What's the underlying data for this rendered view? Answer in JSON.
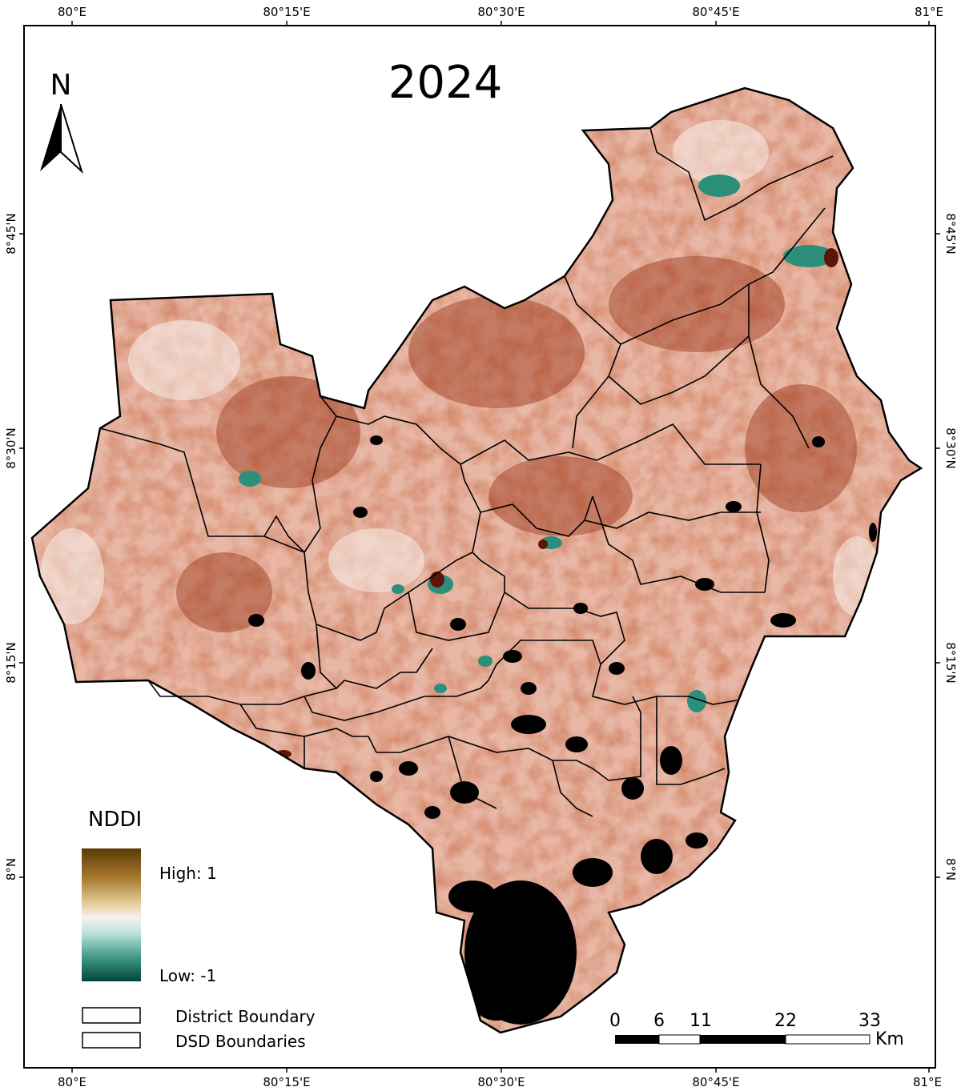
{
  "map": {
    "title": "2024",
    "north_label": "N",
    "top_axis_labels": [
      "80°E",
      "80°15'E",
      "80°30'E",
      "80°45'E",
      "81°E"
    ],
    "bottom_axis_labels": [
      "80°E",
      "80°15'E",
      "80°30'E",
      "80°45'E",
      "81°E"
    ],
    "left_axis_labels": [
      "8°45'N",
      "8°30'N",
      "8°15'N",
      "8°N"
    ],
    "right_axis_labels": [
      "8°45'N",
      "8°30'N",
      "8°15'N",
      "8°N"
    ],
    "legend": {
      "title": "NDDI",
      "high_label": "High: 1",
      "low_label": "Low: -1",
      "ramp_colors": [
        "#5b3a06",
        "#a8782e",
        "#e6cf9a",
        "#f6f3ef",
        "#b9e2dc",
        "#3f9888",
        "#00463a"
      ],
      "boundary_items": [
        {
          "label": "District Boundary"
        },
        {
          "label": "DSD Boundaries"
        }
      ]
    },
    "scale_bar": {
      "ticks": [
        "0",
        "6",
        "11",
        "22",
        "33"
      ],
      "unit": "Km"
    },
    "colors": {
      "land_base": "#e8b7a6",
      "land_high": "#a63b1c",
      "water_low": "#2b8f7c",
      "nodata": "#000000",
      "boundary": "#000000"
    }
  }
}
